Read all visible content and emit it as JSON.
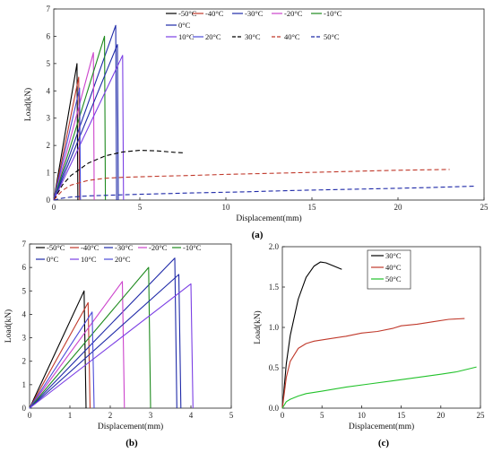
{
  "chart_data": [
    {
      "id": "a",
      "type": "line",
      "caption": "(a)",
      "xlabel": "Displacement(mm)",
      "ylabel": "Load(kN)",
      "xlim": [
        0,
        25
      ],
      "ylim": [
        0,
        7
      ],
      "xticks": [
        0,
        5,
        10,
        15,
        20,
        25
      ],
      "yticks": [
        0,
        1,
        2,
        3,
        4,
        5,
        6,
        7
      ],
      "legend_position": "top-right",
      "legend_rows": [
        [
          "-50°C",
          "-40°C",
          "-30°C",
          "-20°C",
          "-10°C"
        ],
        [
          "0°C"
        ],
        [
          "10°C",
          "20°C",
          "30°C",
          "40°C",
          "50°C"
        ]
      ],
      "series": [
        {
          "name": "-50°C",
          "color": "#000000",
          "dash": "solid",
          "points": [
            [
              0,
              0
            ],
            [
              1.35,
              5.0
            ],
            [
              1.4,
              0
            ]
          ]
        },
        {
          "name": "-40°C",
          "color": "#c0392b",
          "dash": "solid",
          "points": [
            [
              0,
              0
            ],
            [
              1.45,
              4.5
            ],
            [
              1.5,
              0
            ]
          ]
        },
        {
          "name": "-30°C",
          "color": "#1f2aa8",
          "dash": "solid",
          "points": [
            [
              0,
              0
            ],
            [
              3.6,
              6.4
            ],
            [
              3.65,
              0
            ]
          ]
        },
        {
          "name": "-20°C",
          "color": "#cc44cc",
          "dash": "solid",
          "points": [
            [
              0,
              0
            ],
            [
              2.3,
              5.4
            ],
            [
              2.35,
              0
            ]
          ]
        },
        {
          "name": "-10°C",
          "color": "#1e8a1e",
          "dash": "solid",
          "points": [
            [
              0,
              0
            ],
            [
              2.95,
              6.0
            ],
            [
              3.0,
              0
            ]
          ]
        },
        {
          "name": "0°C",
          "color": "#1f2aa8",
          "dash": "solid",
          "points": [
            [
              0,
              0
            ],
            [
              3.7,
              5.7
            ],
            [
              3.75,
              0
            ]
          ]
        },
        {
          "name": "10°C",
          "color": "#7b3fe4",
          "dash": "solid",
          "points": [
            [
              0,
              0
            ],
            [
              4.0,
              5.3
            ],
            [
              4.05,
              0
            ]
          ]
        },
        {
          "name": "20°C",
          "color": "#4b4bd8",
          "dash": "solid",
          "points": [
            [
              0,
              0
            ],
            [
              1.5,
              4.1
            ],
            [
              1.55,
              0
            ]
          ]
        },
        {
          "name": "30°C",
          "color": "#000000",
          "dash": "dashed",
          "points": [
            [
              0,
              0
            ],
            [
              0.5,
              0.55
            ],
            [
              1,
              0.9
            ],
            [
              2,
              1.35
            ],
            [
              3,
              1.62
            ],
            [
              4,
              1.76
            ],
            [
              5,
              1.82
            ],
            [
              6,
              1.8
            ],
            [
              7,
              1.75
            ],
            [
              7.6,
              1.73
            ]
          ]
        },
        {
          "name": "40°C",
          "color": "#c0392b",
          "dash": "dashed",
          "points": [
            [
              0,
              0
            ],
            [
              0.5,
              0.35
            ],
            [
              1,
              0.55
            ],
            [
              2,
              0.72
            ],
            [
              3,
              0.8
            ],
            [
              4,
              0.83
            ],
            [
              6,
              0.87
            ],
            [
              8,
              0.9
            ],
            [
              10,
              0.94
            ],
            [
              12,
              0.97
            ],
            [
              14,
              1.0
            ],
            [
              16,
              1.03
            ],
            [
              18,
              1.06
            ],
            [
              20,
              1.09
            ],
            [
              22,
              1.11
            ],
            [
              23,
              1.12
            ]
          ]
        },
        {
          "name": "50°C",
          "color": "#1f2aa8",
          "dash": "dashed",
          "points": [
            [
              0,
              0
            ],
            [
              0.5,
              0.07
            ],
            [
              1,
              0.11
            ],
            [
              2,
              0.15
            ],
            [
              3,
              0.17
            ],
            [
              5,
              0.21
            ],
            [
              8,
              0.26
            ],
            [
              11,
              0.3
            ],
            [
              14,
              0.35
            ],
            [
              17,
              0.39
            ],
            [
              20,
              0.43
            ],
            [
              22,
              0.46
            ],
            [
              24.5,
              0.51
            ]
          ]
        }
      ]
    },
    {
      "id": "b",
      "type": "line",
      "caption": "(b)",
      "xlabel": "Displacement(mm)",
      "ylabel": "Load(kN)",
      "xlim": [
        0,
        5
      ],
      "ylim": [
        0,
        7
      ],
      "xticks": [
        0,
        1,
        2,
        3,
        4,
        5
      ],
      "yticks": [
        0,
        1,
        2,
        3,
        4,
        5,
        6,
        7
      ],
      "legend_position": "top",
      "legend_rows": [
        [
          "-50°C",
          "-40°C",
          "-30°C",
          "-20°C",
          "-10°C"
        ],
        [
          "0°C",
          "10°C",
          "20°C"
        ]
      ],
      "series": [
        {
          "name": "-50°C",
          "color": "#000000",
          "dash": "solid",
          "points": [
            [
              0,
              0
            ],
            [
              1.35,
              5.0
            ],
            [
              1.4,
              0
            ]
          ]
        },
        {
          "name": "-40°C",
          "color": "#c0392b",
          "dash": "solid",
          "points": [
            [
              0,
              0
            ],
            [
              1.45,
              4.5
            ],
            [
              1.5,
              0
            ]
          ]
        },
        {
          "name": "-30°C",
          "color": "#1f2aa8",
          "dash": "solid",
          "points": [
            [
              0,
              0
            ],
            [
              3.6,
              6.4
            ],
            [
              3.65,
              0
            ]
          ]
        },
        {
          "name": "-20°C",
          "color": "#cc44cc",
          "dash": "solid",
          "points": [
            [
              0,
              0
            ],
            [
              2.3,
              5.4
            ],
            [
              2.35,
              0
            ]
          ]
        },
        {
          "name": "-10°C",
          "color": "#1e8a1e",
          "dash": "solid",
          "points": [
            [
              0,
              0
            ],
            [
              2.95,
              6.0
            ],
            [
              3.0,
              0
            ]
          ]
        },
        {
          "name": "0°C",
          "color": "#1f2aa8",
          "dash": "solid",
          "points": [
            [
              0,
              0
            ],
            [
              3.7,
              5.7
            ],
            [
              3.75,
              0
            ]
          ]
        },
        {
          "name": "10°C",
          "color": "#7b3fe4",
          "dash": "solid",
          "points": [
            [
              0,
              0
            ],
            [
              4.0,
              5.3
            ],
            [
              4.05,
              0
            ]
          ]
        },
        {
          "name": "20°C",
          "color": "#4b4bd8",
          "dash": "solid",
          "points": [
            [
              0,
              0
            ],
            [
              1.55,
              4.1
            ],
            [
              1.6,
              0
            ]
          ]
        }
      ]
    },
    {
      "id": "c",
      "type": "line",
      "caption": "(c)",
      "xlabel": "Displacement(mm)",
      "ylabel": "Load(kN)",
      "xlim": [
        0,
        25
      ],
      "ylim": [
        0,
        2.0
      ],
      "xticks": [
        0,
        5,
        10,
        15,
        20,
        25
      ],
      "yticks": [
        0.0,
        0.5,
        1.0,
        1.5,
        2.0
      ],
      "ytick_labels": [
        "0.0",
        "0.5",
        "1.0",
        "1.5",
        "2.0"
      ],
      "legend_position": "top-center",
      "legend_rows": [
        [
          "30°C"
        ],
        [
          "40°C"
        ],
        [
          "50°C"
        ]
      ],
      "series": [
        {
          "name": "30°C",
          "color": "#000000",
          "dash": "solid",
          "points": [
            [
              0,
              0
            ],
            [
              0.5,
              0.55
            ],
            [
              1,
              0.9
            ],
            [
              2,
              1.35
            ],
            [
              3,
              1.62
            ],
            [
              4,
              1.76
            ],
            [
              4.8,
              1.81
            ],
            [
              5.5,
              1.8
            ],
            [
              6.5,
              1.76
            ],
            [
              7.5,
              1.72
            ]
          ]
        },
        {
          "name": "40°C",
          "color": "#c0392b",
          "dash": "solid",
          "points": [
            [
              0,
              0
            ],
            [
              0.5,
              0.38
            ],
            [
              1,
              0.58
            ],
            [
              2,
              0.74
            ],
            [
              3,
              0.8
            ],
            [
              4,
              0.83
            ],
            [
              6,
              0.86
            ],
            [
              8,
              0.89
            ],
            [
              10,
              0.93
            ],
            [
              12,
              0.95
            ],
            [
              14,
              0.99
            ],
            [
              15,
              1.02
            ],
            [
              17,
              1.04
            ],
            [
              19,
              1.07
            ],
            [
              21,
              1.1
            ],
            [
              23,
              1.11
            ]
          ]
        },
        {
          "name": "50°C",
          "color": "#22c22b",
          "dash": "solid",
          "points": [
            [
              0,
              0
            ],
            [
              0.5,
              0.08
            ],
            [
              1,
              0.11
            ],
            [
              2,
              0.15
            ],
            [
              3,
              0.18
            ],
            [
              5,
              0.21
            ],
            [
              8,
              0.26
            ],
            [
              11,
              0.3
            ],
            [
              14,
              0.34
            ],
            [
              17,
              0.38
            ],
            [
              20,
              0.42
            ],
            [
              22,
              0.45
            ],
            [
              24.5,
              0.51
            ]
          ]
        }
      ]
    }
  ]
}
